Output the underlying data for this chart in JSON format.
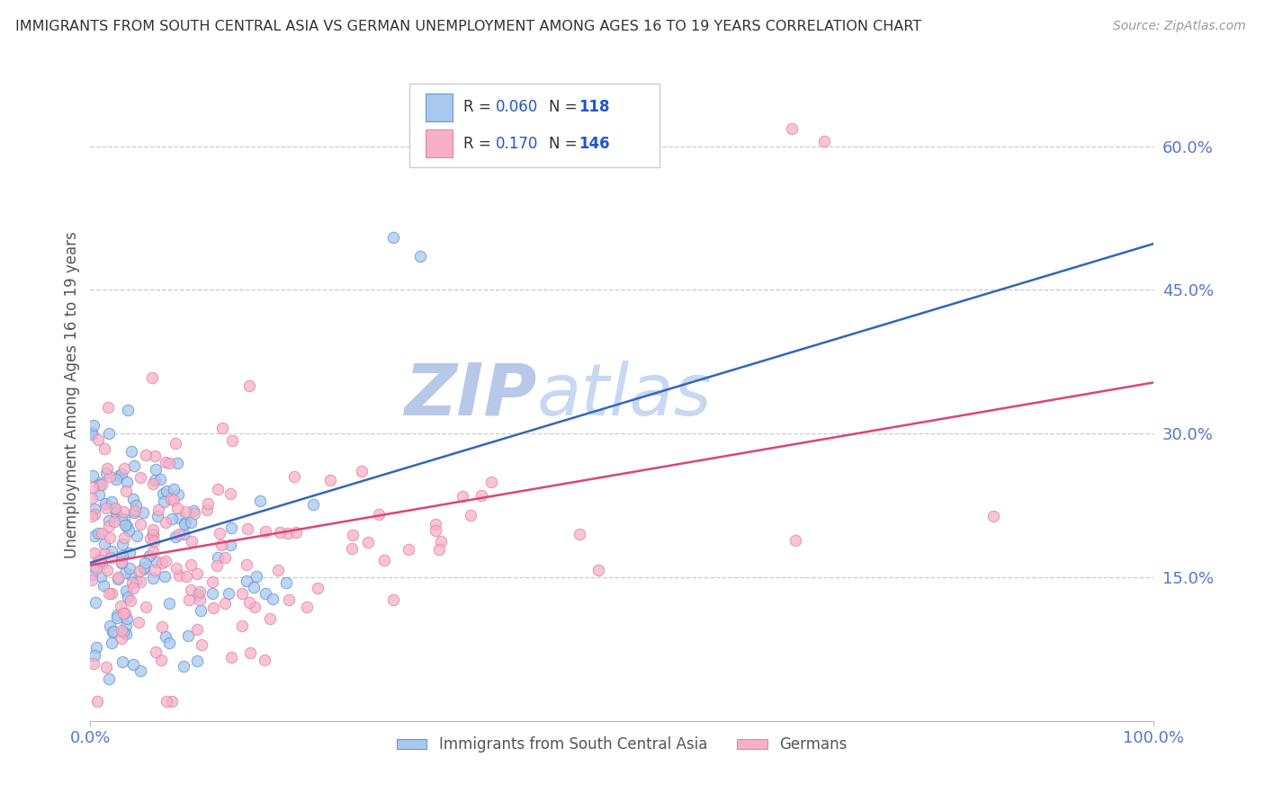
{
  "title": "IMMIGRANTS FROM SOUTH CENTRAL ASIA VS GERMAN UNEMPLOYMENT AMONG AGES 16 TO 19 YEARS CORRELATION CHART",
  "source": "Source: ZipAtlas.com",
  "ylabel": "Unemployment Among Ages 16 to 19 years",
  "xlim": [
    0.0,
    1.0
  ],
  "ylim": [
    0.0,
    0.68
  ],
  "yticks": [
    0.15,
    0.3,
    0.45,
    0.6
  ],
  "ytick_labels": [
    "15.0%",
    "30.0%",
    "45.0%",
    "60.0%"
  ],
  "xticks": [
    0.0,
    1.0
  ],
  "xtick_labels": [
    "0.0%",
    "100.0%"
  ],
  "blue_R": 0.06,
  "blue_N": 118,
  "pink_R": 0.17,
  "pink_N": 146,
  "blue_color": "#a8c8f0",
  "blue_edge_color": "#6699cc",
  "pink_color": "#f8b0c8",
  "pink_edge_color": "#dd88aa",
  "blue_line_color": "#3366bb",
  "pink_line_color": "#dd4477",
  "legend_label_blue": "Immigrants from South Central Asia",
  "legend_label_pink": "Germans",
  "watermark_ZIP": "ZIP",
  "watermark_atlas": "atlas",
  "watermark_ZIP_color": "#b8c8e8",
  "watermark_atlas_color": "#c8d8f0",
  "background_color": "#ffffff",
  "grid_color": "#cccccc",
  "title_color": "#333333",
  "axis_label_color": "#555555",
  "tick_label_color": "#5577cc",
  "legend_R_color": "#333333",
  "legend_N_color": "#2255cc"
}
